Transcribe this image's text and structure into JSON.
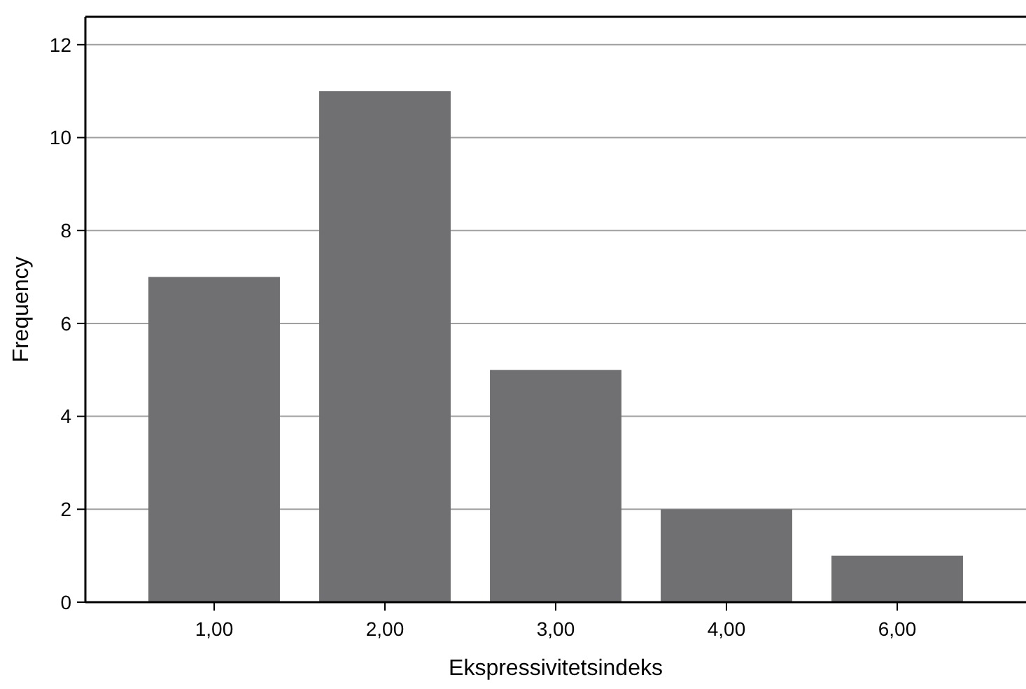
{
  "chart_data": {
    "type": "bar",
    "xlabel": "Ekspressivitetsindeks",
    "ylabel": "Frequency",
    "categories": [
      "1,00",
      "2,00",
      "3,00",
      "4,00",
      "6,00"
    ],
    "values": [
      7,
      11,
      5,
      2,
      1
    ],
    "color": "#707073",
    "ylim": [
      0,
      12.6
    ],
    "yticks": [
      0,
      2,
      4,
      6,
      8,
      10,
      12
    ],
    "grid": "y"
  }
}
